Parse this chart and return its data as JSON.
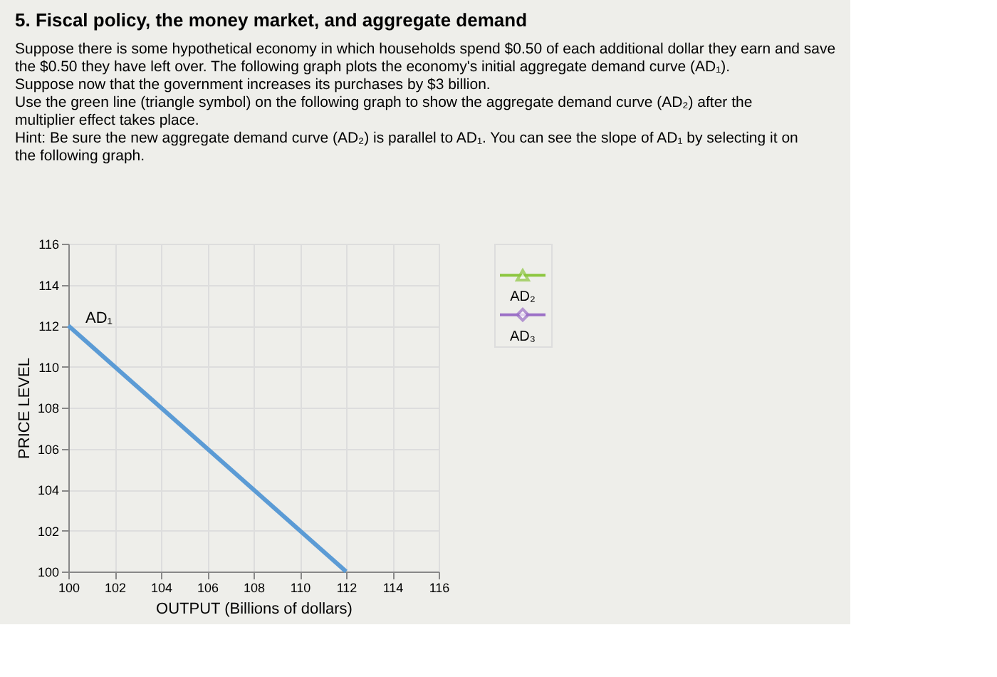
{
  "chart_data": {
    "type": "line",
    "title": "5. Fiscal policy, the money market, and aggregate demand",
    "annotations": [
      "Suppose there is some hypothetical economy in which households spend $0.50 of each additional dollar they earn and save the $0.50 they have left over. The following graph plots the economy's initial aggregate demand curve (AD₁).",
      "Suppose now that the government increases its purchases by $3 billion.",
      "Use the green line (triangle symbol) on the following graph to show the aggregate demand curve (AD₂) after the multiplier effect takes place.",
      "Hint: Be sure the new aggregate demand curve (AD₂) is parallel to AD₁. You can see the slope of AD₁ by selecting it on the following graph."
    ],
    "xlabel": "OUTPUT (Billions of dollars)",
    "ylabel": "PRICE LEVEL",
    "series": [
      {
        "name": "AD₁",
        "color": "#5b9bd5",
        "x": [
          100,
          112
        ],
        "values": [
          112,
          100
        ],
        "marker": "none"
      },
      {
        "name": "AD₂",
        "color": "#8cc63f",
        "marker": "triangle"
      },
      {
        "name": "AD₃",
        "color": "#9b6fc6",
        "marker": "diamond"
      }
    ],
    "xlim": [
      100,
      116
    ],
    "xticks": [
      100,
      102,
      104,
      106,
      108,
      110,
      112,
      114,
      116
    ],
    "ylim": [
      100,
      116
    ],
    "yticks": [
      100,
      102,
      104,
      106,
      108,
      110,
      112,
      114,
      116
    ],
    "grid": true,
    "legend": "right",
    "line_style": "solid"
  }
}
